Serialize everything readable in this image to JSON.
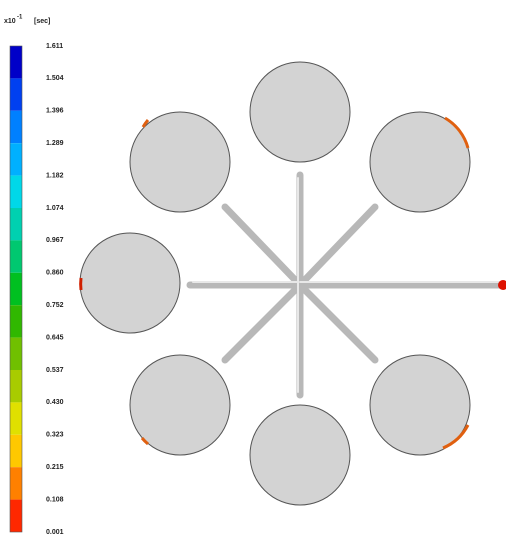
{
  "legend": {
    "prefix": "x10",
    "exponent": "-1",
    "unit": "[sec]",
    "labels": [
      "1.611",
      "1.504",
      "1.396",
      "1.289",
      "1.182",
      "1.074",
      "0.967",
      "0.860",
      "0.752",
      "0.645",
      "0.537",
      "0.430",
      "0.323",
      "0.215",
      "0.108",
      "0.001"
    ]
  }
}
